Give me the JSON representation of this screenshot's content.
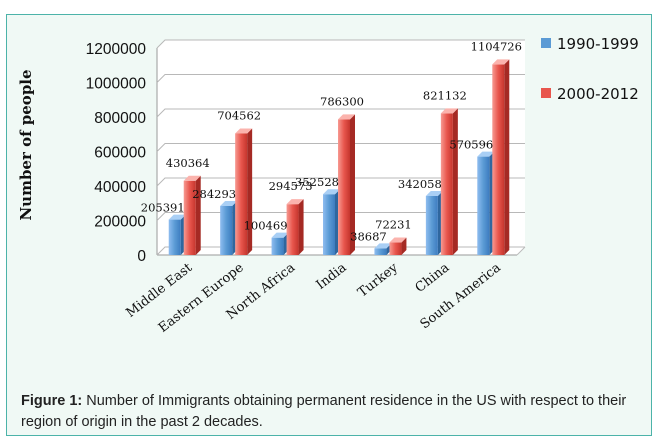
{
  "chart_data": {
    "type": "bar",
    "title": "",
    "xlabel": "",
    "ylabel": "Number of people",
    "ylim": [
      0,
      1200000
    ],
    "yticks": [
      0,
      200000,
      400000,
      600000,
      800000,
      1000000,
      1200000
    ],
    "yticks_text": [
      "0",
      "200000",
      "400000",
      "600000",
      "800000",
      "1000000",
      "1200000"
    ],
    "grid": "horizontal",
    "legend": "right",
    "categories": [
      "Middle East",
      "Eastern Europe",
      "North Africa",
      "India",
      "Turkey",
      "China",
      "South America"
    ],
    "series": [
      {
        "name": "1990-1999",
        "color": "#5b9bd5",
        "values": [
          205391,
          284293,
          100469,
          352528,
          38687,
          342058,
          570596
        ],
        "labels": [
          "205391",
          "284293",
          "100469",
          "352528",
          "38687",
          "342058",
          "570596"
        ]
      },
      {
        "name": "2000-2012",
        "color": "#e8564d",
        "values": [
          430364,
          704562,
          294573,
          786300,
          72231,
          821132,
          1104726
        ],
        "labels": [
          "430364",
          "704562",
          "294573",
          "786300",
          "72231",
          "821132",
          "1104726"
        ]
      }
    ]
  },
  "caption": {
    "label": "Figure 1:",
    "text": " Number of Immigrants obtaining permanent residence in the US with respect to their region of origin in the past 2 decades."
  }
}
